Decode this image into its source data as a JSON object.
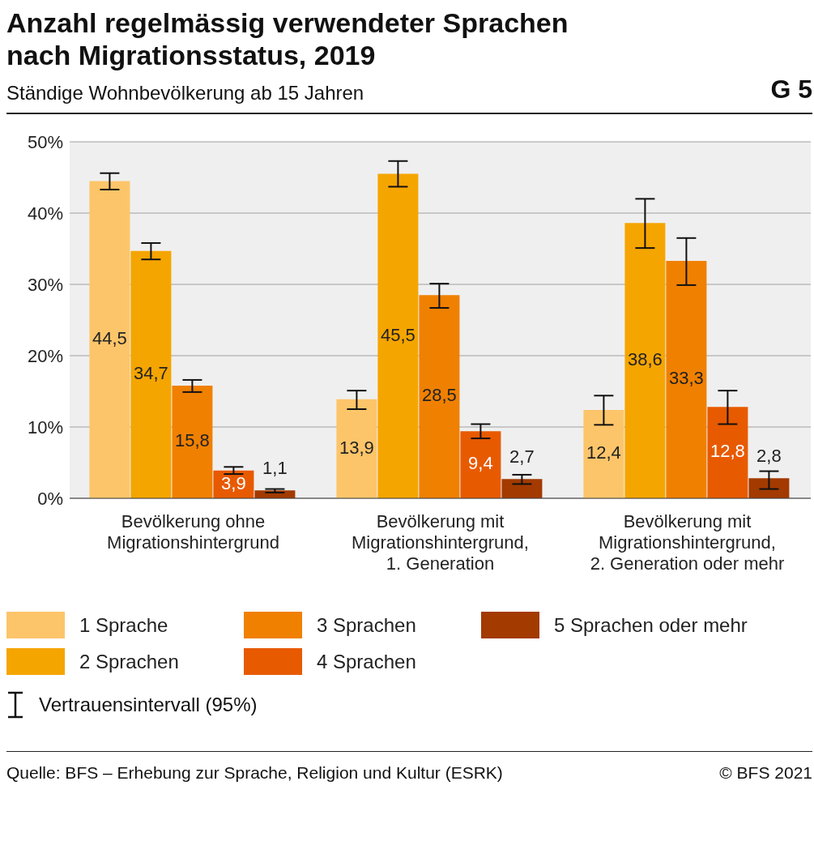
{
  "chart_data": {
    "type": "bar",
    "title": "Anzahl regelmässig verwendeter Sprachen nach Migrationsstatus, 2019",
    "subtitle": "Ständige Wohnbevölkerung ab 15 Jahren",
    "categories": [
      "Bevölkerung ohne Migrationshintergrund",
      "Bevölkerung mit Migrationshintergrund, 1. Generation",
      "Bevölkerung mit Migrationshintergrund, 2. Generation oder mehr"
    ],
    "series": [
      {
        "name": "1 Sprache",
        "color": "#fdc56a",
        "values": [
          44.5,
          13.9,
          12.4
        ],
        "value_labels": [
          "44,5",
          "13,9",
          "12,4"
        ],
        "errors": [
          [
            43.3,
            45.6
          ],
          [
            12.5,
            15.1
          ],
          [
            10.3,
            14.4
          ]
        ]
      },
      {
        "name": "2 Sprachen",
        "color": "#f5a500",
        "values": [
          34.7,
          45.5,
          38.6
        ],
        "value_labels": [
          "34,7",
          "45,5",
          "38,6"
        ],
        "errors": [
          [
            33.5,
            35.8
          ],
          [
            43.7,
            47.3
          ],
          [
            35.1,
            42.0
          ]
        ]
      },
      {
        "name": "3 Sprachen",
        "color": "#f08000",
        "values": [
          15.8,
          28.5,
          33.3
        ],
        "value_labels": [
          "15,8",
          "28,5",
          "33,3"
        ],
        "errors": [
          [
            14.9,
            16.6
          ],
          [
            26.7,
            30.1
          ],
          [
            29.9,
            36.5
          ]
        ]
      },
      {
        "name": "4 Sprachen",
        "color": "#e85a00",
        "values": [
          3.9,
          9.4,
          12.8
        ],
        "value_labels": [
          "3,9",
          "9,4",
          "12,8"
        ],
        "errors": [
          [
            3.4,
            4.4
          ],
          [
            8.4,
            10.4
          ],
          [
            10.4,
            15.1
          ]
        ]
      },
      {
        "name": "5 Sprachen oder mehr",
        "color": "#a33a00",
        "values": [
          1.1,
          2.7,
          2.8
        ],
        "value_labels": [
          "1,1",
          "2,7",
          "2,8"
        ],
        "errors": [
          [
            0.8,
            1.3
          ],
          [
            2.0,
            3.3
          ],
          [
            1.3,
            3.8
          ]
        ]
      }
    ],
    "ylim": [
      0,
      50
    ],
    "yticks": [
      {
        "value": 0,
        "label": "0%"
      },
      {
        "value": 10,
        "label": "10%"
      },
      {
        "value": 20,
        "label": "20%"
      },
      {
        "value": 30,
        "label": "30%"
      },
      {
        "value": 40,
        "label": "40%"
      },
      {
        "value": 50,
        "label": "50%"
      }
    ],
    "grid": "y",
    "legend": "bottom",
    "annotations": [
      "G 5",
      "Vertrauensintervall (95%)",
      "Quelle: BFS – Erhebung zur Sprache, Religion und Kultur (ESRK)",
      "© BFS 2021"
    ]
  }
}
